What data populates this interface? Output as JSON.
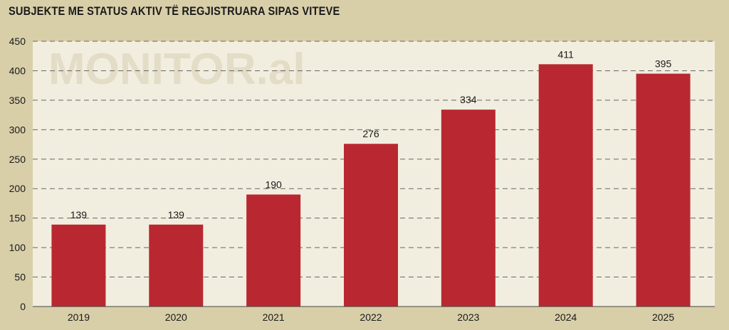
{
  "chart_data": {
    "type": "bar",
    "title": "SUBJEKTE ME STATUS AKTIV TË REGJISTRUARA SIPAS VITEVE",
    "watermark": "MONITOR.al",
    "categories": [
      "2019",
      "2020",
      "2021",
      "2022",
      "2023",
      "2024",
      "2025"
    ],
    "values": [
      139,
      139,
      190,
      276,
      334,
      411,
      395
    ],
    "data_labels": [
      "139",
      "139",
      "190",
      "276",
      "334",
      "411",
      "395"
    ],
    "ylim": [
      0,
      450
    ],
    "yticks": [
      0,
      50,
      100,
      150,
      200,
      250,
      300,
      350,
      400,
      450
    ],
    "ytick_labels": [
      "0",
      "50",
      "100",
      "150",
      "200",
      "250",
      "300",
      "350",
      "400",
      "450"
    ],
    "xlabel": "",
    "ylabel": "",
    "grid": true,
    "grid_style": "dashed",
    "legend": false,
    "colors": {
      "bar": "#b92830",
      "plot_background": "#f2eedf",
      "page_background": "#d8cfa9",
      "grid": "#666666",
      "text": "#1a1a1a",
      "watermark": "#e3dcc6"
    }
  }
}
